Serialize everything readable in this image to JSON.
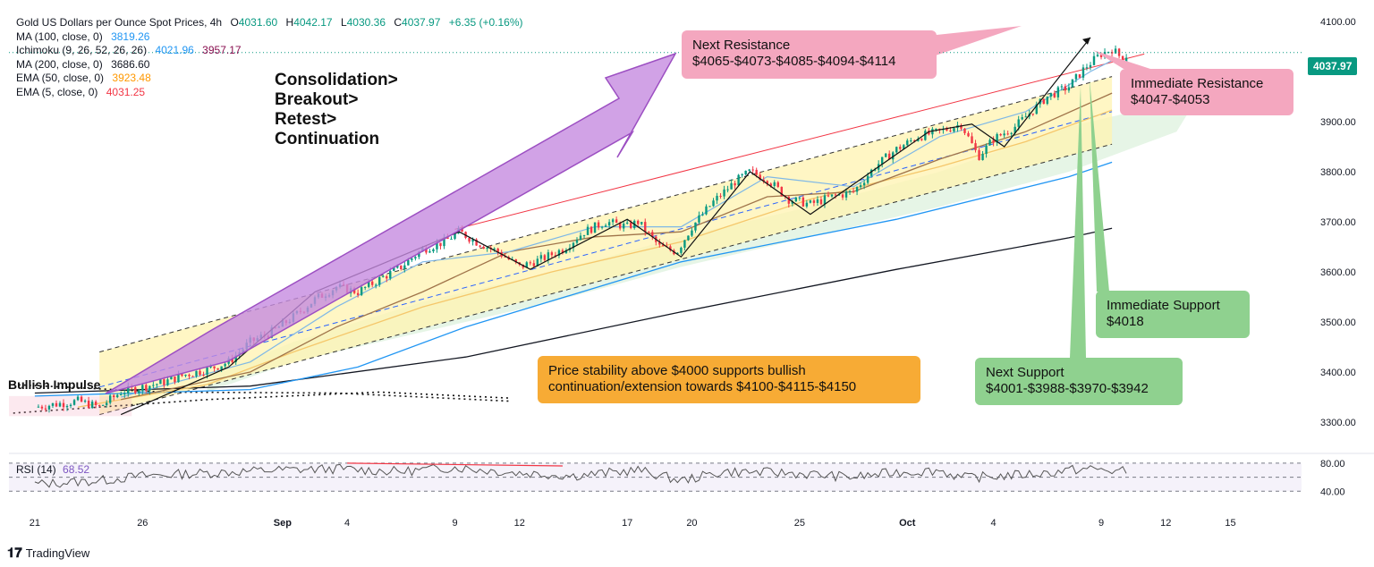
{
  "legend": {
    "title": "Gold US Dollars per Ounce Spot Prices, 4h",
    "ohlc": {
      "o_label": "O",
      "o": "4031.60",
      "h_label": "H",
      "h": "4042.17",
      "l_label": "L",
      "l": "4030.36",
      "c_label": "C",
      "c": "4037.97",
      "chg": "+6.35 (+0.16%)"
    },
    "indicators": [
      {
        "name": "MA (100, close, 0)",
        "values": [
          "3819.26"
        ],
        "colors": [
          "#2196f3"
        ]
      },
      {
        "name": "Ichimoku (9, 26, 52, 26, 26)",
        "values": [
          "4021.96",
          "3957.17"
        ],
        "colors": [
          "#2196f3",
          "#880e4f"
        ]
      },
      {
        "name": "MA (200, close, 0)",
        "values": [
          "3686.60"
        ],
        "colors": [
          "#131722"
        ]
      },
      {
        "name": "EMA (50, close, 0)",
        "values": [
          "3923.48"
        ],
        "colors": [
          "#ff9800"
        ]
      },
      {
        "name": "EMA (5, close, 0)",
        "values": [
          "4031.25"
        ],
        "colors": [
          "#f23645"
        ]
      }
    ]
  },
  "annotations": {
    "consolidation": [
      "Consolidation>",
      "Breakout>",
      "Retest>",
      "Continuation"
    ],
    "next_resistance": [
      "Next Resistance",
      "$4065-$4073-$4085-$4094-$4114"
    ],
    "immediate_resistance": [
      "Immediate Resistance",
      "$4047-$4053"
    ],
    "immediate_support": [
      "Immediate Support",
      "$4018"
    ],
    "next_support": [
      "Next Support",
      "$4001-$3988-$3970-$3942"
    ],
    "price_stability": [
      "Price stability above $4000 supports bullish",
      "continuation/extension towards $4100-$4115-$4150"
    ],
    "bullish_impulse": "Bullish Impulse"
  },
  "current_price": "4037.97",
  "rsi": {
    "label": "RSI (14)",
    "value": "68.52",
    "levels": [
      "80.00",
      "40.00"
    ],
    "range": [
      20,
      90
    ]
  },
  "branding": "TradingView",
  "colors": {
    "up": "#089981",
    "down": "#f23645",
    "pink": "#f4a7bf",
    "green": "#8fd18f",
    "orange": "#f7ab35",
    "purple": "#c58be0",
    "channel": "#fff3b0"
  },
  "chart_data": {
    "type": "candlestick",
    "title": "Gold US Dollars per Ounce Spot Prices, 4h",
    "ylim": [
      3250,
      4125
    ],
    "y_ticks": [
      "4100.00",
      "4000.00",
      "3900.00",
      "3800.00",
      "3700.00",
      "3600.00",
      "3500.00",
      "3400.00",
      "3300.00"
    ],
    "x_ticks": [
      "21",
      "26",
      "Sep",
      "4",
      "9",
      "12",
      "17",
      "20",
      "25",
      "Oct",
      "4",
      "9",
      "12",
      "15"
    ],
    "x_tick_days": [
      0,
      5,
      11.5,
      14.5,
      19.5,
      22.5,
      27.5,
      30.5,
      35.5,
      40.5,
      44.5,
      49.5,
      52.5,
      55.5
    ],
    "xlim_days": [
      -1.2,
      58.8
    ],
    "price_path": [
      [
        0,
        3330
      ],
      [
        1,
        3336
      ],
      [
        2,
        3342
      ],
      [
        3,
        3330
      ],
      [
        4,
        3360
      ],
      [
        5,
        3370
      ],
      [
        6,
        3380
      ],
      [
        7,
        3395
      ],
      [
        8,
        3405
      ],
      [
        9,
        3420
      ],
      [
        10,
        3460
      ],
      [
        11,
        3480
      ],
      [
        12,
        3510
      ],
      [
        13,
        3545
      ],
      [
        14,
        3570
      ],
      [
        15,
        3560
      ],
      [
        16,
        3585
      ],
      [
        17,
        3610
      ],
      [
        18,
        3645
      ],
      [
        19,
        3660
      ],
      [
        19.7,
        3680
      ],
      [
        20.5,
        3660
      ],
      [
        21.5,
        3640
      ],
      [
        22.5,
        3610
      ],
      [
        23.5,
        3625
      ],
      [
        24.5,
        3645
      ],
      [
        25.5,
        3680
      ],
      [
        26.5,
        3700
      ],
      [
        27.5,
        3690
      ],
      [
        28,
        3700
      ],
      [
        29,
        3650
      ],
      [
        29.8,
        3640
      ],
      [
        30.5,
        3690
      ],
      [
        31.5,
        3740
      ],
      [
        32.5,
        3780
      ],
      [
        33.2,
        3800
      ],
      [
        34,
        3785
      ],
      [
        35,
        3745
      ],
      [
        36,
        3735
      ],
      [
        37,
        3750
      ],
      [
        38,
        3760
      ],
      [
        39,
        3810
      ],
      [
        40,
        3845
      ],
      [
        41,
        3870
      ],
      [
        42,
        3880
      ],
      [
        43,
        3895
      ],
      [
        43.8,
        3830
      ],
      [
        44.5,
        3865
      ],
      [
        45.5,
        3890
      ],
      [
        46.5,
        3930
      ],
      [
        47,
        3950
      ],
      [
        48,
        3970
      ],
      [
        48.8,
        4010
      ],
      [
        49.5,
        4035
      ],
      [
        50,
        4045
      ],
      [
        50.5,
        4025
      ],
      [
        50.8,
        4038
      ]
    ],
    "ma200": [
      [
        0,
        3358
      ],
      [
        10,
        3372
      ],
      [
        20,
        3430
      ],
      [
        30,
        3520
      ],
      [
        40,
        3605
      ],
      [
        48,
        3668
      ],
      [
        50,
        3687
      ]
    ],
    "ma100": [
      [
        0,
        3352
      ],
      [
        10,
        3365
      ],
      [
        15,
        3410
      ],
      [
        20,
        3490
      ],
      [
        30,
        3620
      ],
      [
        40,
        3705
      ],
      [
        48,
        3790
      ],
      [
        50,
        3819
      ]
    ],
    "ema50": [
      [
        2,
        3330
      ],
      [
        8,
        3375
      ],
      [
        12,
        3440
      ],
      [
        18,
        3530
      ],
      [
        24,
        3600
      ],
      [
        30,
        3660
      ],
      [
        36,
        3745
      ],
      [
        42,
        3810
      ],
      [
        46,
        3860
      ],
      [
        50,
        3923
      ]
    ],
    "ichimoku_base": [
      [
        4,
        3345
      ],
      [
        10,
        3400
      ],
      [
        14,
        3490
      ],
      [
        18,
        3560
      ],
      [
        22,
        3640
      ],
      [
        26,
        3670
      ],
      [
        30,
        3680
      ],
      [
        34,
        3750
      ],
      [
        38,
        3760
      ],
      [
        42,
        3825
      ],
      [
        46,
        3880
      ],
      [
        50,
        3957
      ]
    ],
    "ichimoku_conv": [
      [
        4,
        3350
      ],
      [
        10,
        3420
      ],
      [
        14,
        3530
      ],
      [
        18,
        3620
      ],
      [
        22,
        3640
      ],
      [
        26,
        3690
      ],
      [
        30,
        3690
      ],
      [
        34,
        3790
      ],
      [
        38,
        3770
      ],
      [
        42,
        3870
      ],
      [
        46,
        3920
      ],
      [
        49,
        4000
      ],
      [
        50,
        4022
      ]
    ],
    "zigzag": [
      [
        4,
        3315
      ],
      [
        9,
        3410
      ],
      [
        13,
        3560
      ],
      [
        19.7,
        3680
      ],
      [
        23,
        3605
      ],
      [
        27.5,
        3705
      ],
      [
        30,
        3630
      ],
      [
        33.2,
        3800
      ],
      [
        36,
        3715
      ],
      [
        41.5,
        3880
      ],
      [
        43.5,
        3895
      ],
      [
        45,
        3850
      ],
      [
        49,
        4068
      ]
    ],
    "channel": {
      "upper": [
        [
          3,
          3440
        ],
        [
          50,
          3990
        ]
      ],
      "mid": [
        [
          3,
          3370
        ],
        [
          50,
          3920
        ]
      ],
      "lower": [
        [
          3,
          3315
        ],
        [
          50,
          3855
        ]
      ]
    },
    "red_trendline": [
      [
        19.5,
        3685
      ],
      [
        51.5,
        4035
      ]
    ],
    "rsi_values": [
      [
        0,
        50
      ],
      [
        3,
        55
      ],
      [
        5,
        62
      ],
      [
        8,
        66
      ],
      [
        11,
        70
      ],
      [
        14,
        72
      ],
      [
        17,
        68
      ],
      [
        19.5,
        74
      ],
      [
        22,
        67
      ],
      [
        25,
        62
      ],
      [
        28,
        70
      ],
      [
        30,
        55
      ],
      [
        32,
        68
      ],
      [
        35,
        66
      ],
      [
        38,
        60
      ],
      [
        40,
        67
      ],
      [
        41,
        68
      ],
      [
        42,
        70
      ],
      [
        43,
        59
      ],
      [
        45,
        62
      ],
      [
        47,
        66
      ],
      [
        48,
        70
      ],
      [
        49,
        72
      ],
      [
        50,
        69
      ],
      [
        50.8,
        68.5
      ]
    ],
    "rsi_divergence": [
      [
        14.5,
        80
      ],
      [
        24.5,
        76
      ]
    ]
  }
}
